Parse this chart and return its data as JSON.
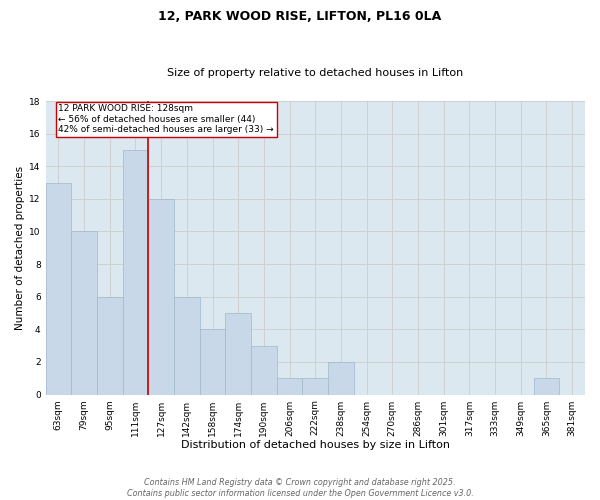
{
  "title": "12, PARK WOOD RISE, LIFTON, PL16 0LA",
  "subtitle": "Size of property relative to detached houses in Lifton",
  "xlabel": "Distribution of detached houses by size in Lifton",
  "ylabel": "Number of detached properties",
  "categories": [
    "63sqm",
    "79sqm",
    "95sqm",
    "111sqm",
    "127sqm",
    "142sqm",
    "158sqm",
    "174sqm",
    "190sqm",
    "206sqm",
    "222sqm",
    "238sqm",
    "254sqm",
    "270sqm",
    "286sqm",
    "301sqm",
    "317sqm",
    "333sqm",
    "349sqm",
    "365sqm",
    "381sqm"
  ],
  "values": [
    13,
    10,
    6,
    15,
    12,
    6,
    4,
    5,
    3,
    1,
    1,
    2,
    0,
    0,
    0,
    0,
    0,
    0,
    0,
    1,
    0
  ],
  "bar_color": "#c8d8e8",
  "bar_edgecolor": "#a0b8cc",
  "highlight_index": 4,
  "highlight_line_color": "#cc0000",
  "annotation_text": "12 PARK WOOD RISE: 128sqm\n← 56% of detached houses are smaller (44)\n42% of semi-detached houses are larger (33) →",
  "annotation_box_edgecolor": "#cc0000",
  "annotation_box_facecolor": "#ffffff",
  "ylim": [
    0,
    18
  ],
  "yticks": [
    0,
    2,
    4,
    6,
    8,
    10,
    12,
    14,
    16,
    18
  ],
  "grid_color": "#cccccc",
  "background_color": "#dce8f0",
  "footer_text": "Contains HM Land Registry data © Crown copyright and database right 2025.\nContains public sector information licensed under the Open Government Licence v3.0.",
  "title_fontsize": 9,
  "subtitle_fontsize": 8,
  "xlabel_fontsize": 8,
  "ylabel_fontsize": 7.5,
  "tick_fontsize": 6.5,
  "annotation_fontsize": 6.5,
  "footer_fontsize": 5.8
}
